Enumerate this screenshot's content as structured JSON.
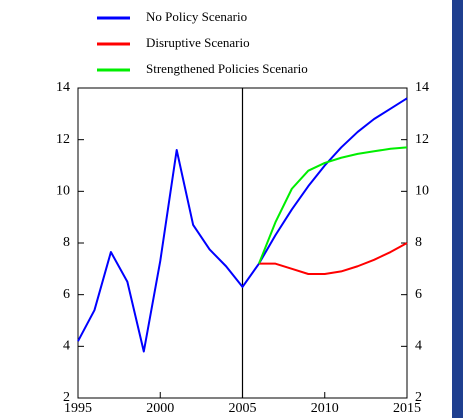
{
  "chart_data": {
    "type": "line",
    "x": [
      1995,
      1996,
      1997,
      1998,
      1999,
      2000,
      2001,
      2002,
      2003,
      2004,
      2005,
      2006,
      2007,
      2008,
      2009,
      2010,
      2011,
      2012,
      2013,
      2014,
      2015
    ],
    "series": [
      {
        "name": "No Policy Scenario",
        "color": "#0000ff",
        "values": [
          4.2,
          5.4,
          7.65,
          6.5,
          3.8,
          7.3,
          11.6,
          8.7,
          7.75,
          7.1,
          6.3,
          7.2,
          8.3,
          9.3,
          10.2,
          11.0,
          11.7,
          12.3,
          12.8,
          13.2,
          13.6
        ]
      },
      {
        "name": "Disruptive Scenario",
        "color": "#ff0000",
        "values": [
          null,
          null,
          null,
          null,
          null,
          null,
          null,
          null,
          null,
          null,
          null,
          7.2,
          7.2,
          7.0,
          6.8,
          6.8,
          6.9,
          7.1,
          7.35,
          7.65,
          8.0
        ]
      },
      {
        "name": "Strengthened Policies Scenario",
        "color": "#00ee00",
        "values": [
          null,
          null,
          null,
          null,
          null,
          null,
          null,
          null,
          null,
          null,
          null,
          7.2,
          8.8,
          10.1,
          10.8,
          11.1,
          11.3,
          11.45,
          11.55,
          11.65,
          11.7
        ]
      }
    ],
    "xlim": [
      1995,
      2015
    ],
    "xticks": [
      1995,
      2000,
      2005,
      2010,
      2015
    ],
    "ylim": [
      2,
      14
    ],
    "yticks": [
      2,
      4,
      6,
      8,
      10,
      12,
      14
    ],
    "y2lim": [
      2,
      14
    ],
    "y2ticks": [
      2,
      4,
      6,
      8,
      10,
      12,
      14
    ],
    "vline": 2005
  }
}
